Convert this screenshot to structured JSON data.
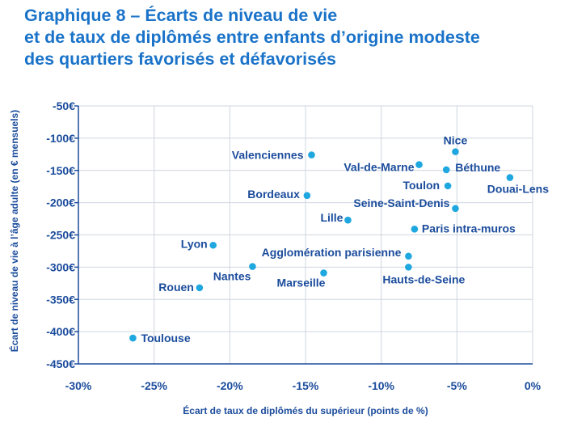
{
  "chart_data": {
    "type": "scatter",
    "title_lines": [
      "Graphique 8 – Écarts de niveau de vie",
      "et de taux de diplômés entre enfants d’origine modeste",
      "des quartiers favorisés et défavorisés"
    ],
    "xlabel": "Écart de taux de diplômés du supérieur (points de %)",
    "ylabel": "Écart de niveau de vie à l’âge adulte (en € mensuels)",
    "xlim": [
      -30,
      0
    ],
    "ylim": [
      -450,
      -50
    ],
    "x_ticks": [
      -30,
      -25,
      -20,
      -15,
      -10,
      -5,
      0
    ],
    "x_tick_labels": [
      "-30%",
      "-25%",
      "-20%",
      "-15%",
      "-10%",
      "-5%",
      "0%"
    ],
    "y_ticks": [
      -50,
      -100,
      -150,
      -200,
      -250,
      -300,
      -350,
      -400,
      -450
    ],
    "y_tick_labels": [
      "-50€",
      "-100€",
      "-150€",
      "-200€",
      "-250€",
      "-300€",
      "-350€",
      "-400€",
      "-450€"
    ],
    "grid": true,
    "point_color": "#1fa7e0",
    "points": [
      {
        "label": "Nice",
        "x": -5.1,
        "y": -121
      },
      {
        "label": "Valenciennes",
        "x": -14.6,
        "y": -126
      },
      {
        "label": "Val-de-Marne",
        "x": -7.5,
        "y": -141
      },
      {
        "label": "Béthune",
        "x": -5.7,
        "y": -149
      },
      {
        "label": "Douai-Lens",
        "x": -1.5,
        "y": -161
      },
      {
        "label": "Toulon",
        "x": -5.6,
        "y": -174
      },
      {
        "label": "Bordeaux",
        "x": -14.9,
        "y": -189
      },
      {
        "label": "Seine-Saint-Denis",
        "x": -5.1,
        "y": -209
      },
      {
        "label": "Lille",
        "x": -12.2,
        "y": -227
      },
      {
        "label": "Paris intra-muros",
        "x": -7.8,
        "y": -241
      },
      {
        "label": "Lyon",
        "x": -21.1,
        "y": -266
      },
      {
        "label": "Agglomération parisienne",
        "x": -8.2,
        "y": -283
      },
      {
        "label": "Nantes",
        "x": -18.5,
        "y": -299
      },
      {
        "label": "Hauts-de-Seine",
        "x": -8.2,
        "y": -300
      },
      {
        "label": "Marseille",
        "x": -13.8,
        "y": -309
      },
      {
        "label": "Rouen",
        "x": -22.0,
        "y": -332
      },
      {
        "label": "Toulouse",
        "x": -26.4,
        "y": -410
      }
    ]
  }
}
